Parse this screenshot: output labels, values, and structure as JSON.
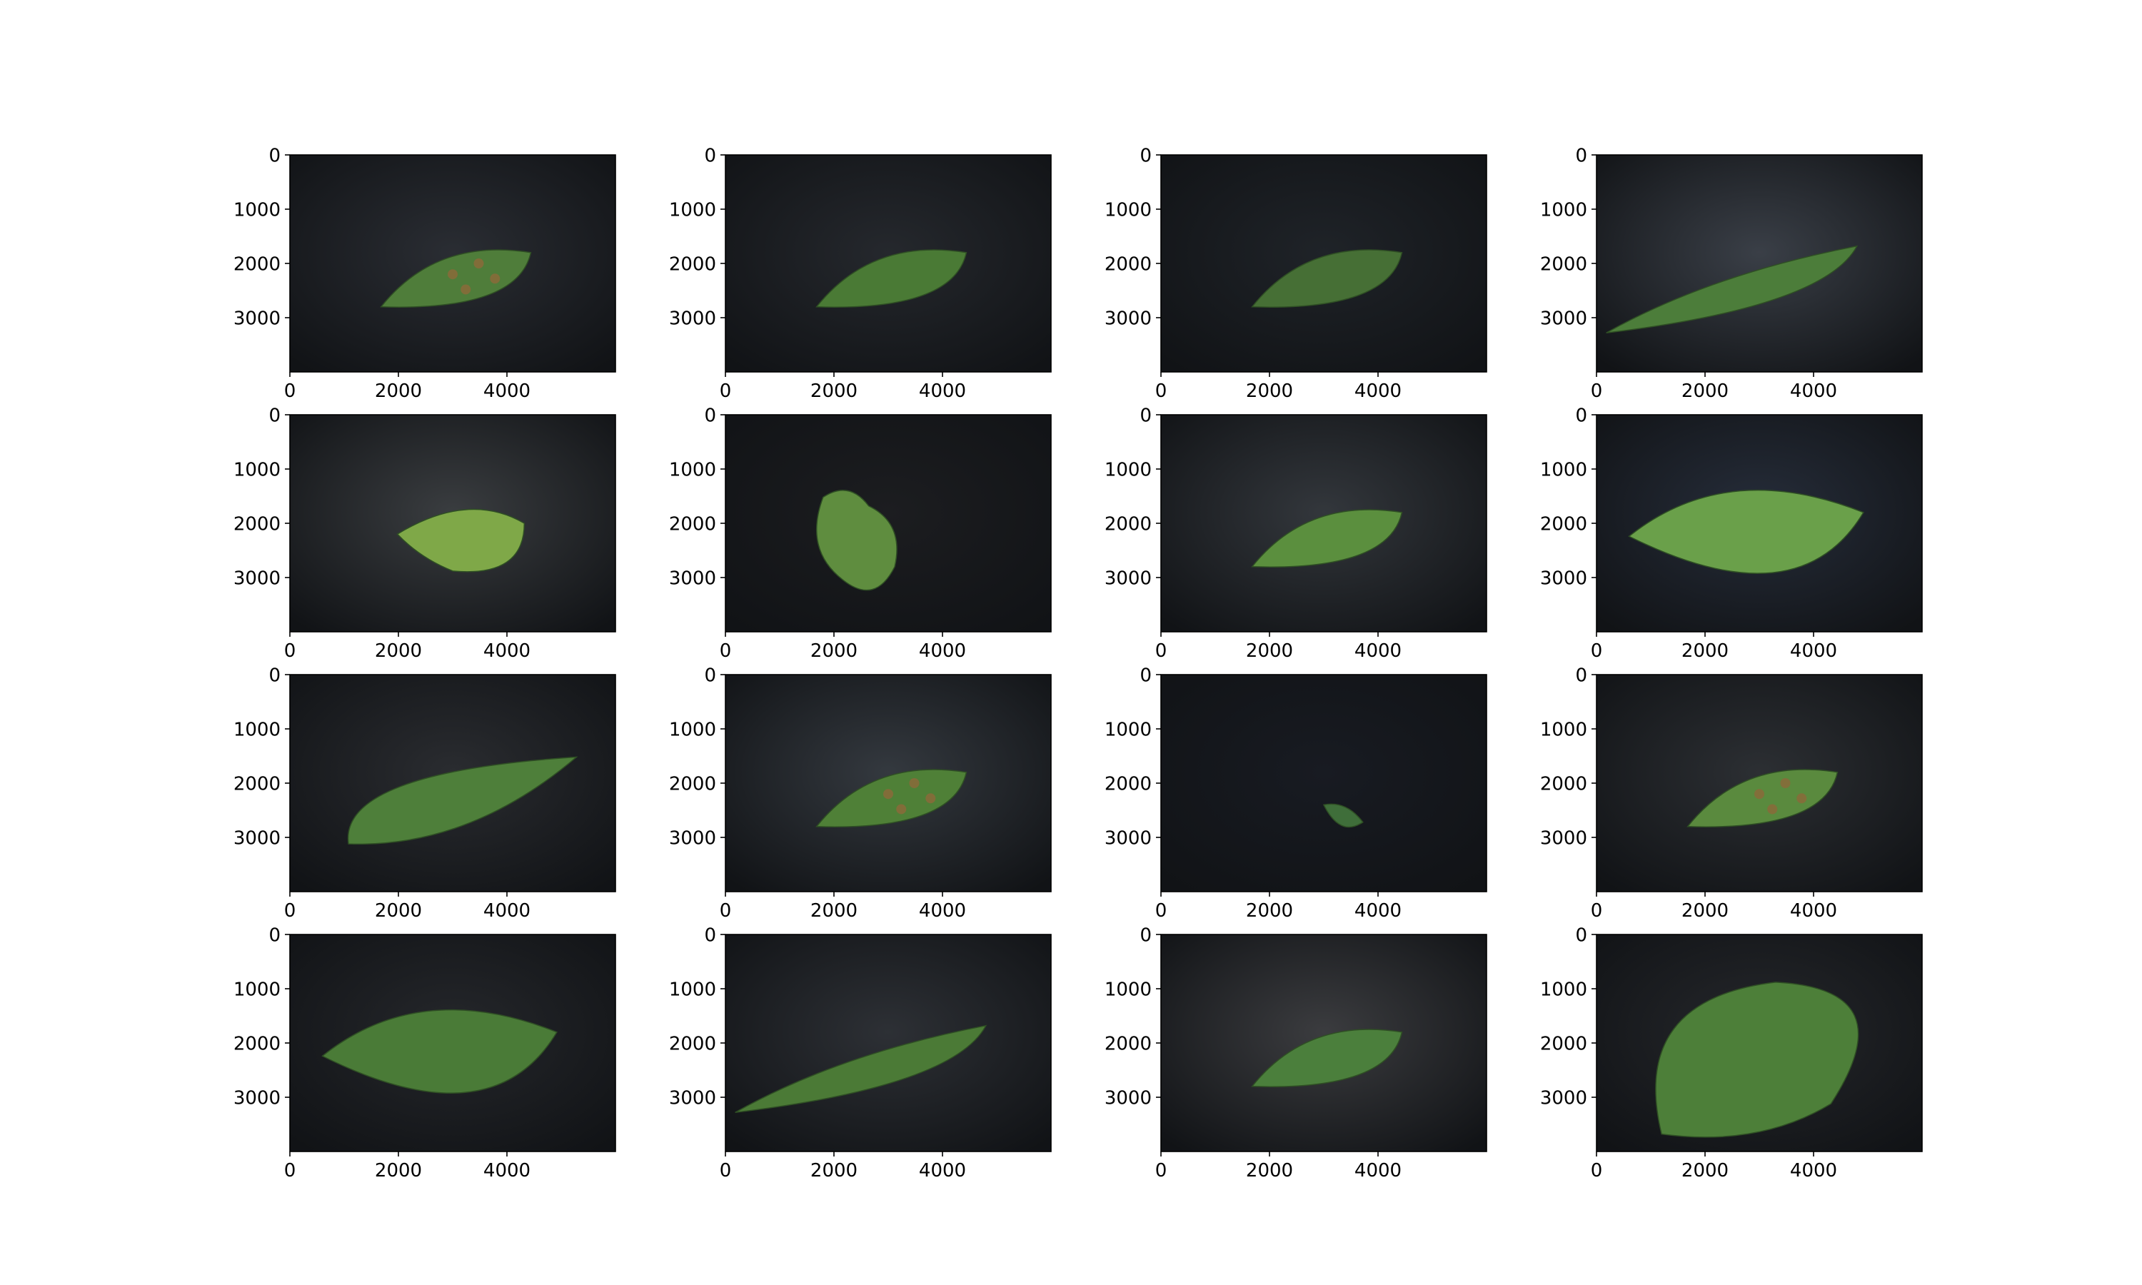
{
  "figure": {
    "rows": 4,
    "cols": 4,
    "background": "#ffffff",
    "axes": {
      "x_ticks": [
        0,
        2000,
        4000
      ],
      "y_ticks": [
        0,
        1000,
        2000,
        3000
      ],
      "x_range": [
        0,
        6000
      ],
      "y_range": [
        0,
        4000
      ],
      "y_inverted": true
    },
    "panels": [
      {
        "id": 1,
        "bg": "#2a2d33",
        "leaf": "#4f7d3a",
        "shape": "spotted-ellipse"
      },
      {
        "id": 2,
        "bg": "#25282d",
        "leaf": "#4a7a35",
        "shape": "ellipse"
      },
      {
        "id": 3,
        "bg": "#1f2328",
        "leaf": "#466f35",
        "shape": "ellipse"
      },
      {
        "id": 4,
        "bg": "#3a3f47",
        "leaf": "#4c7d3a",
        "shape": "long-wavy"
      },
      {
        "id": 5,
        "bg": "#3a3d40",
        "leaf": "#7fa848",
        "shape": "damaged"
      },
      {
        "id": 6,
        "bg": "#1c1d20",
        "leaf": "#5f8d3f",
        "shape": "lobed"
      },
      {
        "id": 7,
        "bg": "#33373c",
        "leaf": "#5b8f3e",
        "shape": "ellipse"
      },
      {
        "id": 8,
        "bg": "#262d3a",
        "leaf": "#6aa04a",
        "shape": "wide-ellipse"
      },
      {
        "id": 9,
        "bg": "#2a2c30",
        "leaf": "#4e7f3a",
        "shape": "obovate"
      },
      {
        "id": 10,
        "bg": "#34393f",
        "leaf": "#4f8037",
        "shape": "spotted-ellipse"
      },
      {
        "id": 11,
        "bg": "#181b22",
        "leaf": "#3f6e3a",
        "shape": "tiny"
      },
      {
        "id": 12,
        "bg": "#2c2f33",
        "leaf": "#5a8a3e",
        "shape": "spotted-ellipse"
      },
      {
        "id": 13,
        "bg": "#25272b",
        "leaf": "#4a7b37",
        "shape": "wide-ellipse"
      },
      {
        "id": 14,
        "bg": "#2d3035",
        "leaf": "#4b7a36",
        "shape": "long-wavy"
      },
      {
        "id": 15,
        "bg": "#3b3c3f",
        "leaf": "#4b7f3c",
        "shape": "ellipse"
      },
      {
        "id": 16,
        "bg": "#25272b",
        "leaf": "#4d7f39",
        "shape": "round"
      }
    ]
  }
}
